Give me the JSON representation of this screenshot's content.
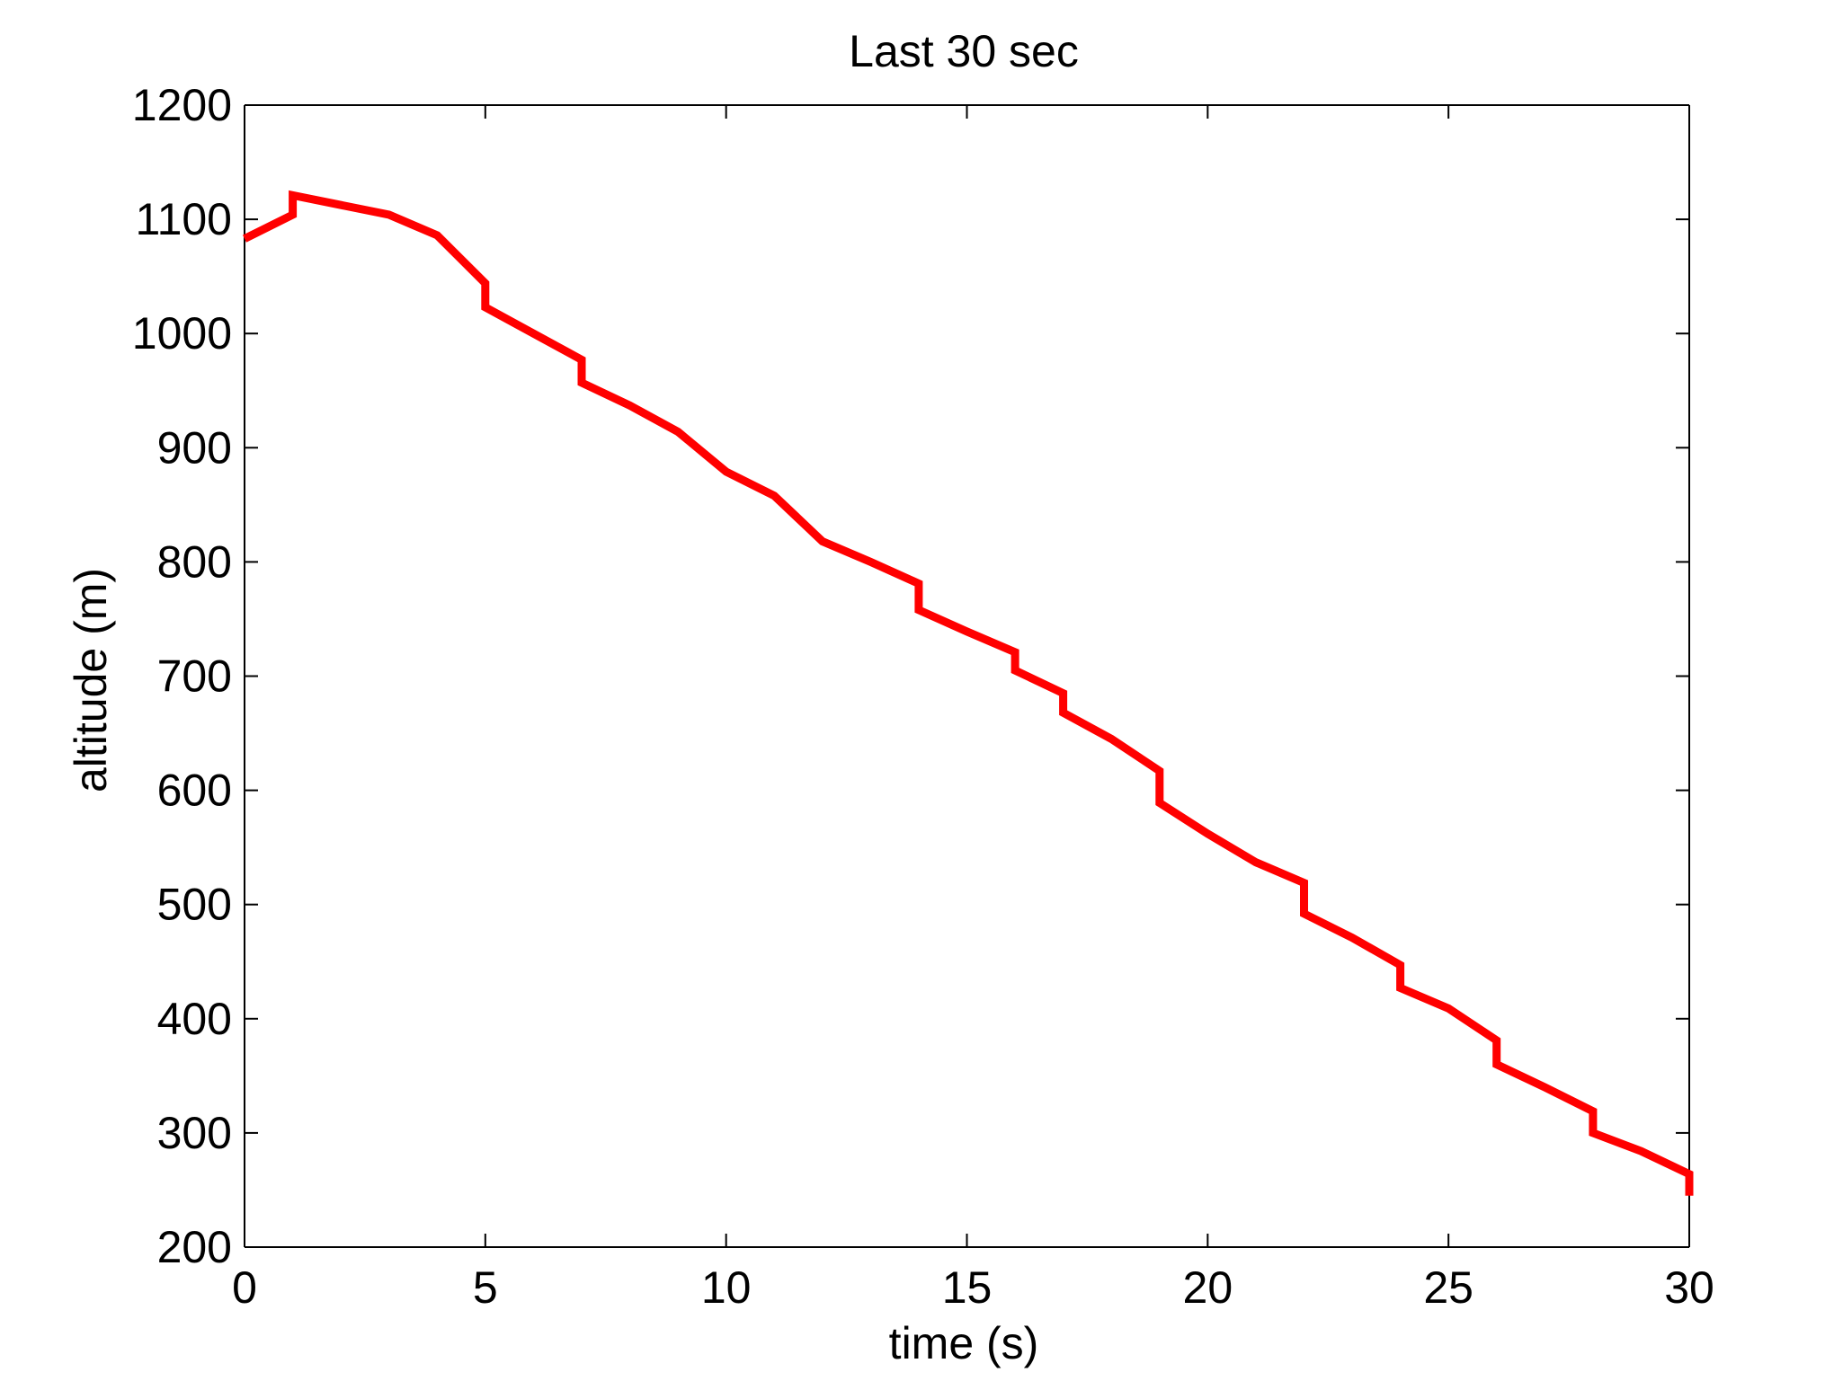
{
  "chart_data": {
    "type": "line",
    "title": "Last 30 sec",
    "xlabel": "time (s)",
    "ylabel": "altitude (m)",
    "xlim": [
      0,
      30
    ],
    "ylim": [
      200,
      1200
    ],
    "xticks": [
      0,
      5,
      10,
      15,
      20,
      25,
      30
    ],
    "yticks": [
      200,
      300,
      400,
      500,
      600,
      700,
      800,
      900,
      1000,
      1100,
      1200
    ],
    "grid": false,
    "line_color": "#ff0000",
    "series": [
      {
        "points": [
          [
            0,
            1083
          ],
          [
            1,
            1104
          ],
          [
            1,
            1121
          ],
          [
            3,
            1104
          ],
          [
            4,
            1086
          ],
          [
            5,
            1044
          ],
          [
            5,
            1023
          ],
          [
            7,
            977
          ],
          [
            7,
            957
          ],
          [
            8,
            937
          ],
          [
            9,
            914
          ],
          [
            10,
            879
          ],
          [
            11,
            858
          ],
          [
            12,
            818
          ],
          [
            13,
            800
          ],
          [
            14,
            781
          ],
          [
            14,
            758
          ],
          [
            15,
            739
          ],
          [
            16,
            721
          ],
          [
            16,
            705
          ],
          [
            17,
            685
          ],
          [
            17,
            668
          ],
          [
            18,
            645
          ],
          [
            19,
            617
          ],
          [
            19,
            589
          ],
          [
            20,
            562
          ],
          [
            21,
            537
          ],
          [
            22,
            519
          ],
          [
            22,
            492
          ],
          [
            23,
            471
          ],
          [
            24,
            447
          ],
          [
            24,
            427
          ],
          [
            25,
            409
          ],
          [
            26,
            381
          ],
          [
            26,
            360
          ],
          [
            27,
            340
          ],
          [
            28,
            319
          ],
          [
            28,
            300
          ],
          [
            29,
            284
          ],
          [
            30,
            264
          ],
          [
            30,
            245
          ]
        ]
      }
    ]
  }
}
